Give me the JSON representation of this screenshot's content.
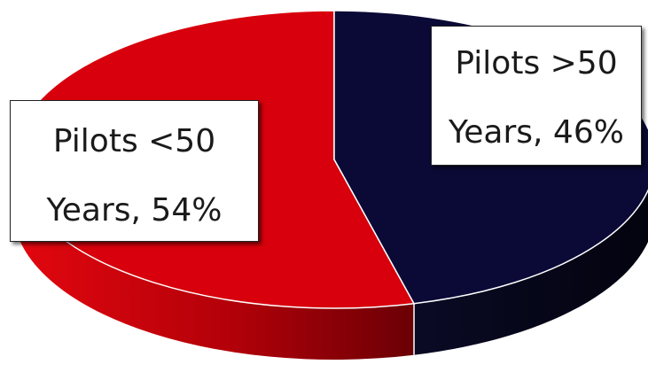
{
  "chart_data": {
    "type": "pie",
    "style": "3d",
    "series": [
      {
        "slices": [
          {
            "label": "Pilots <50 Years",
            "value": 54,
            "display_lines": [
              "Pilots <50",
              "Years, 54%"
            ],
            "color": "#d7000c"
          },
          {
            "label": "Pilots >50 Years",
            "value": 46,
            "display_lines": [
              "Pilots >50",
              "Years, 46%"
            ],
            "color": "#0b0a36"
          }
        ]
      }
    ],
    "data_labels": "category name and percentage"
  }
}
